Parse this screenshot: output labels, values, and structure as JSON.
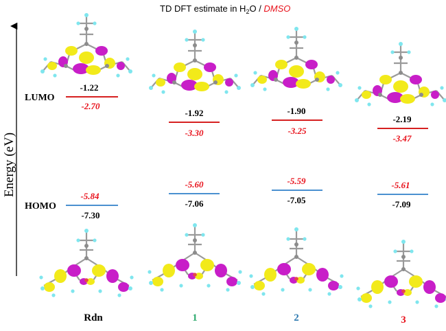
{
  "title": {
    "prefix": "TD DFT estimate in H",
    "subscript": "2",
    "mid": "O / ",
    "solvent2": "DMSO"
  },
  "axis": {
    "label": "Energy (eV)"
  },
  "levels": {
    "lumo_label": "LUMO",
    "homo_label": "HOMO"
  },
  "colors": {
    "h2o_value": "#000000",
    "dmso_value": "#e8101a",
    "lumo_line": "#d62020",
    "homo_line": "#4a90d0",
    "cmp_1": "#2eaa6e",
    "cmp_2": "#2c79b0",
    "cmp_3": "#e8101a",
    "lobe_positive": "#f2ea1a",
    "lobe_negative": "#c81ec8"
  },
  "compounds": [
    {
      "name": "Rdn",
      "color": "#000000",
      "lumo_h2o": "-1.22",
      "lumo_dmso": "-2.70",
      "homo_dmso": "-5.84",
      "homo_h2o": "-7.30"
    },
    {
      "name": "1",
      "color": "#2eaa6e",
      "lumo_h2o": "-1.92",
      "lumo_dmso": "-3.30",
      "homo_dmso": "-5.60",
      "homo_h2o": "-7.06"
    },
    {
      "name": "2",
      "color": "#2c79b0",
      "lumo_h2o": "-1.90",
      "lumo_dmso": "-3.25",
      "homo_dmso": "-5.59",
      "homo_h2o": "-7.05"
    },
    {
      "name": "3",
      "color": "#e8101a",
      "lumo_h2o": "-2.19",
      "lumo_dmso": "-3.47",
      "homo_dmso": "-5.61",
      "homo_h2o": "-7.09"
    }
  ],
  "orbital_icons": {
    "lumo": "molecular-orbital-lumo-icon",
    "homo": "molecular-orbital-homo-icon"
  }
}
